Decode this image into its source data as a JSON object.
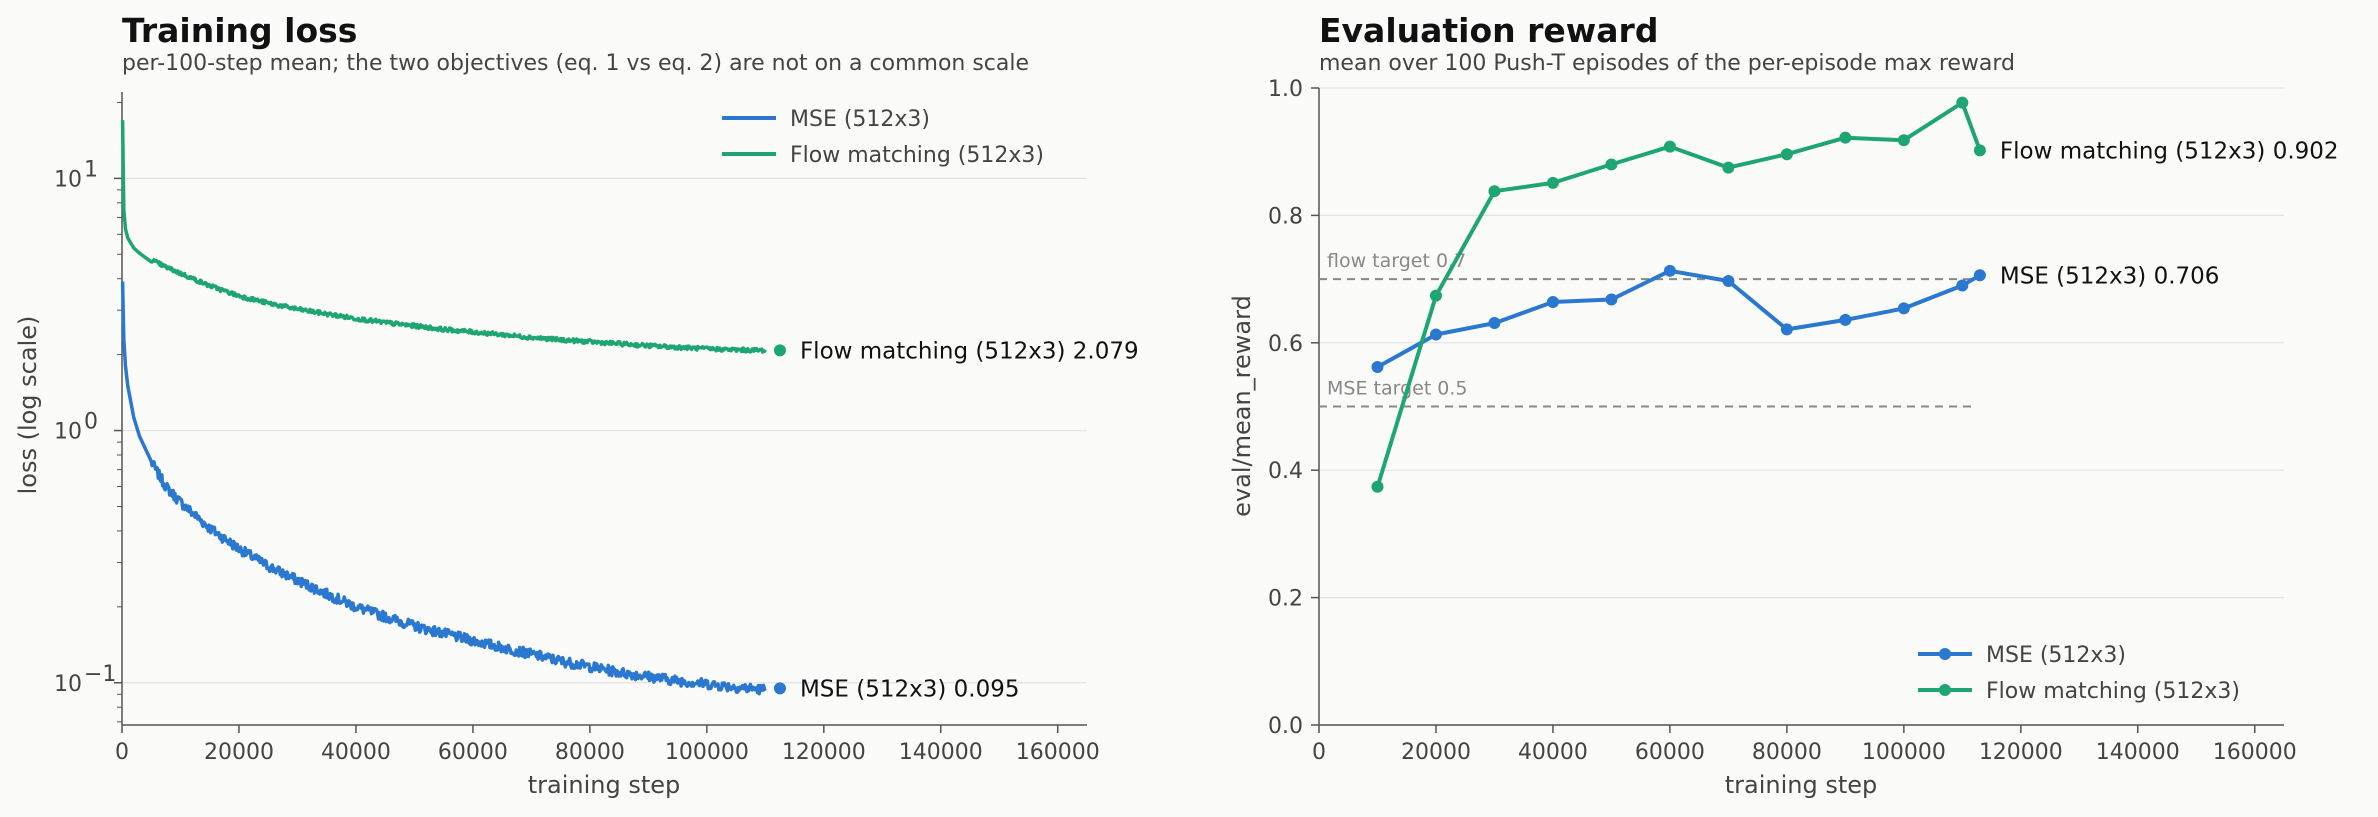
{
  "colors": {
    "mse": "#2b78d0",
    "flow": "#1ea672",
    "ref": "#888888",
    "grid": "#e3e3e3",
    "axis": "#555555"
  },
  "chart_data": [
    {
      "type": "line",
      "title": "Training loss",
      "subtitle": "per-100-step mean; the two objectives (eq. 1 vs eq. 2) are not on a common scale",
      "xlabel": "training step",
      "ylabel": "loss (log scale)",
      "yscale": "log",
      "xlim": [
        0,
        165000
      ],
      "ylim": [
        0.068,
        22
      ],
      "x_ticks": [
        0,
        20000,
        40000,
        60000,
        80000,
        100000,
        120000,
        140000,
        160000
      ],
      "x_tick_labels": [
        "0",
        "20000",
        "40000",
        "60000",
        "80000",
        "100000",
        "120000",
        "140000",
        "160000"
      ],
      "y_ticks": [
        0.1,
        1,
        10
      ],
      "y_tick_labels": [
        {
          "base": "10",
          "exp": "−1"
        },
        {
          "base": "10",
          "exp": "0"
        },
        {
          "base": "10",
          "exp": "1"
        }
      ],
      "grid": "horizontal",
      "legend": "top-right",
      "legend_entries": [
        "MSE (512x3)",
        "Flow matching (512x3)"
      ],
      "series": [
        {
          "name": "MSE (512x3)",
          "color_key": "mse",
          "x": [
            100,
            300,
            600,
            1000,
            2000,
            3000,
            5000,
            7500,
            10000,
            15000,
            20000,
            25000,
            30000,
            35000,
            40000,
            45000,
            50000,
            55000,
            60000,
            65000,
            70000,
            75000,
            80000,
            85000,
            90000,
            95000,
            100000,
            105000,
            110000,
            112500
          ],
          "y": [
            3.9,
            2.3,
            1.8,
            1.5,
            1.13,
            0.95,
            0.75,
            0.6,
            0.52,
            0.41,
            0.34,
            0.29,
            0.255,
            0.225,
            0.2,
            0.183,
            0.168,
            0.157,
            0.147,
            0.138,
            0.13,
            0.122,
            0.116,
            0.11,
            0.106,
            0.102,
            0.099,
            0.096,
            0.094,
            0.095
          ],
          "end_label": "MSE (512x3)  0.095"
        },
        {
          "name": "Flow matching (512x3)",
          "color_key": "flow",
          "x": [
            100,
            300,
            600,
            1000,
            2000,
            3000,
            5000,
            7500,
            10000,
            15000,
            20000,
            25000,
            30000,
            35000,
            40000,
            45000,
            50000,
            55000,
            60000,
            65000,
            70000,
            75000,
            80000,
            85000,
            90000,
            95000,
            100000,
            105000,
            110000,
            112500
          ],
          "y": [
            17,
            7.5,
            6.3,
            5.8,
            5.3,
            5.05,
            4.75,
            4.45,
            4.2,
            3.75,
            3.42,
            3.2,
            3.03,
            2.9,
            2.78,
            2.68,
            2.6,
            2.52,
            2.46,
            2.4,
            2.34,
            2.29,
            2.25,
            2.21,
            2.17,
            2.14,
            2.11,
            2.09,
            2.08,
            2.079
          ],
          "end_label": "Flow matching (512x3)  2.079"
        }
      ]
    },
    {
      "type": "line",
      "title": "Evaluation reward",
      "subtitle": "mean over 100 Push-T episodes of the per-episode max reward",
      "xlabel": "training step",
      "ylabel": "eval/mean_reward",
      "xlim": [
        0,
        165000
      ],
      "ylim": [
        0,
        1.0
      ],
      "x_ticks": [
        0,
        20000,
        40000,
        60000,
        80000,
        100000,
        120000,
        140000,
        160000
      ],
      "x_tick_labels": [
        "0",
        "20000",
        "40000",
        "60000",
        "80000",
        "100000",
        "120000",
        "140000",
        "160000"
      ],
      "y_ticks": [
        0,
        0.2,
        0.4,
        0.6,
        0.8,
        1.0
      ],
      "y_tick_labels": [
        "0.0",
        "0.2",
        "0.4",
        "0.6",
        "0.8",
        "1.0"
      ],
      "grid": "horizontal",
      "legend": "bottom-right",
      "legend_entries": [
        "MSE (512x3)",
        "Flow matching (512x3)"
      ],
      "reference_lines": [
        {
          "y": 0.7,
          "label": "flow target 0.7"
        },
        {
          "y": 0.5,
          "label": "MSE target 0.5"
        }
      ],
      "series": [
        {
          "name": "MSE (512x3)",
          "color_key": "mse",
          "x": [
            10000,
            20000,
            30000,
            40000,
            50000,
            60000,
            70000,
            80000,
            90000,
            100000,
            110000,
            113000
          ],
          "y": [
            0.562,
            0.613,
            0.631,
            0.664,
            0.668,
            0.713,
            0.697,
            0.621,
            0.636,
            0.654,
            0.69,
            0.706
          ],
          "end_label": "MSE (512x3)  0.706"
        },
        {
          "name": "Flow matching (512x3)",
          "color_key": "flow",
          "x": [
            10000,
            20000,
            30000,
            40000,
            50000,
            60000,
            70000,
            80000,
            90000,
            100000,
            110000,
            113000
          ],
          "y": [
            0.374,
            0.674,
            0.838,
            0.851,
            0.88,
            0.908,
            0.875,
            0.896,
            0.922,
            0.918,
            0.977,
            0.902
          ],
          "end_label": "Flow matching (512x3)  0.902"
        }
      ]
    }
  ]
}
